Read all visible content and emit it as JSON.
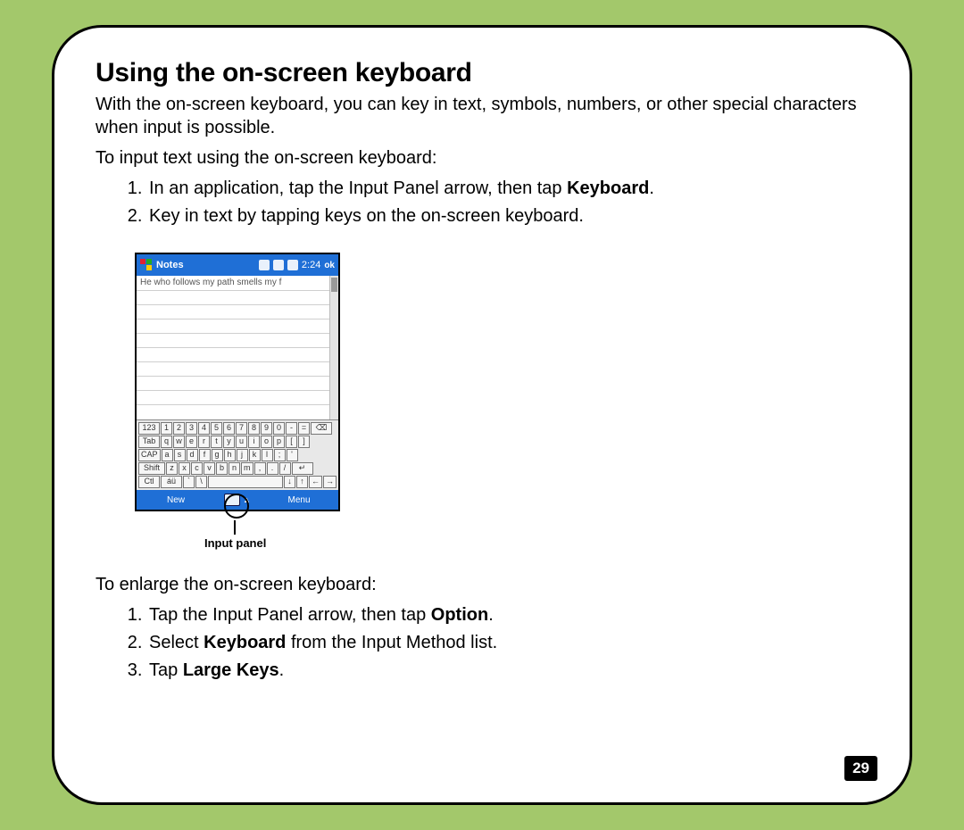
{
  "page": {
    "title": "Using the on-screen keyboard",
    "intro": "With the on-screen keyboard, you can key in text, symbols, numbers, or other special characters when input is possible.",
    "lead1": "To input text using the on-screen keyboard:",
    "steps1": {
      "s1_pre": "In an application, tap the Input Panel arrow, then tap ",
      "s1_bold": "Keyboard",
      "s1_post": ".",
      "s2": "Key in text by tapping keys on the on-screen keyboard."
    },
    "lead2": "To enlarge the on-screen keyboard:",
    "steps2": {
      "s1_pre": "Tap the Input Panel arrow, then tap ",
      "s1_bold": "Option",
      "s1_post": ".",
      "s2_pre": "Select ",
      "s2_bold": "Keyboard",
      "s2_post": " from the Input Method list.",
      "s3_pre": "Tap ",
      "s3_bold": "Large Keys",
      "s3_post": "."
    },
    "number": "29"
  },
  "screenshot": {
    "app_title": "Notes",
    "clock": "2:24",
    "ok": "ok",
    "note_text": "He who follows my path smells my f",
    "soft_left": "New",
    "soft_right": "Menu",
    "callout": "Input panel",
    "kb": {
      "r1": [
        "123",
        "1",
        "2",
        "3",
        "4",
        "5",
        "6",
        "7",
        "8",
        "9",
        "0",
        "-",
        "=",
        "⌫"
      ],
      "r2": [
        "Tab",
        "q",
        "w",
        "e",
        "r",
        "t",
        "y",
        "u",
        "i",
        "o",
        "p",
        "[",
        "]"
      ],
      "r3": [
        "CAP",
        "a",
        "s",
        "d",
        "f",
        "g",
        "h",
        "j",
        "k",
        "l",
        ";",
        "'"
      ],
      "r4": [
        "Shift",
        "z",
        "x",
        "c",
        "v",
        "b",
        "n",
        "m",
        ",",
        ".",
        "/",
        "↵"
      ],
      "r5": [
        "Ctl",
        "áü",
        "`",
        "\\",
        " ",
        "↓",
        "↑",
        "←",
        "→"
      ]
    }
  },
  "colors": {
    "page_bg": "#a3c86b",
    "card_bg": "#ffffff",
    "card_border": "#000000",
    "titlebar_bg": "#1f6fd6",
    "kb_bg": "#e8e8e8",
    "key_bg": "#f6f6f6",
    "key_border": "#777777",
    "rule": "#cfcfcf"
  }
}
